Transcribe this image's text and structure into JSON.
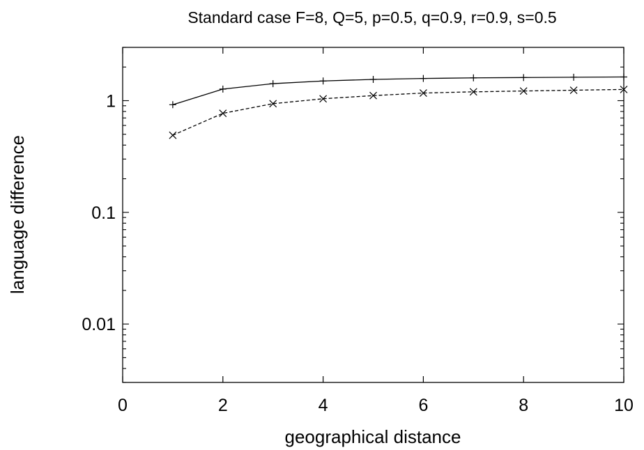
{
  "chart_data": {
    "type": "line",
    "title": "Standard case F=8, Q=5, p=0.5, q=0.9, r=0.9, s=0.5",
    "xlabel": "geographical distance",
    "ylabel": "language difference",
    "xlim": [
      0,
      10
    ],
    "ylim": [
      0.003,
      3
    ],
    "yscale": "log",
    "grid": false,
    "legend": "none",
    "x_ticks": [
      0,
      2,
      4,
      6,
      8,
      10
    ],
    "x_tick_labels": [
      "0",
      "2",
      "4",
      "6",
      "8",
      "10"
    ],
    "y_ticks": [
      0.01,
      0.1,
      1
    ],
    "y_tick_labels": [
      "0.01",
      "0.1",
      "1"
    ],
    "series": [
      {
        "marker": "plus",
        "line_style": "solid",
        "x": [
          1,
          2,
          3,
          4,
          5,
          6,
          7,
          8,
          9,
          10
        ],
        "values": [
          0.92,
          1.27,
          1.42,
          1.5,
          1.55,
          1.58,
          1.6,
          1.61,
          1.62,
          1.63
        ]
      },
      {
        "marker": "cross",
        "line_style": "dashed",
        "x": [
          1,
          2,
          3,
          4,
          5,
          6,
          7,
          8,
          9,
          10
        ],
        "values": [
          0.49,
          0.77,
          0.94,
          1.04,
          1.11,
          1.17,
          1.2,
          1.22,
          1.24,
          1.26
        ]
      }
    ],
    "colors": {
      "line": "#000000",
      "frame": "#000000",
      "background": "#ffffff"
    }
  }
}
